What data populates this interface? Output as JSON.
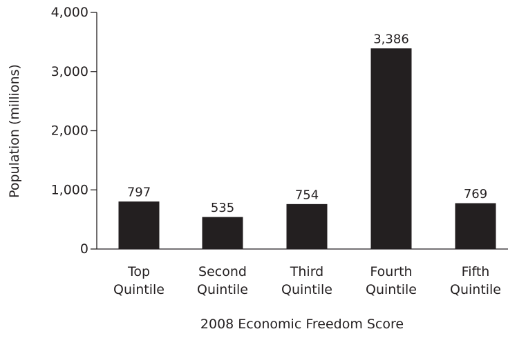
{
  "chart_data": {
    "type": "bar",
    "categories": [
      [
        "Top",
        "Quintile"
      ],
      [
        "Second",
        "Quintile"
      ],
      [
        "Third",
        "Quintile"
      ],
      [
        "Fourth",
        "Quintile"
      ],
      [
        "Fifth",
        "Quintile"
      ]
    ],
    "values": [
      797,
      535,
      754,
      3386,
      769
    ],
    "value_labels": [
      "797",
      "535",
      "754",
      "3,386",
      "769"
    ],
    "xlabel": "2008 Economic Freedom Score",
    "ylabel": "Population (millions)",
    "ylim": [
      0,
      4000
    ],
    "yticks": [
      0,
      1000,
      2000,
      3000,
      4000
    ],
    "ytick_labels": [
      "0",
      "1,000",
      "2,000",
      "3,000",
      "4,000"
    ],
    "grid": false,
    "legend": "none",
    "bar_color": "#231f20",
    "axis_color": "#231f20"
  }
}
